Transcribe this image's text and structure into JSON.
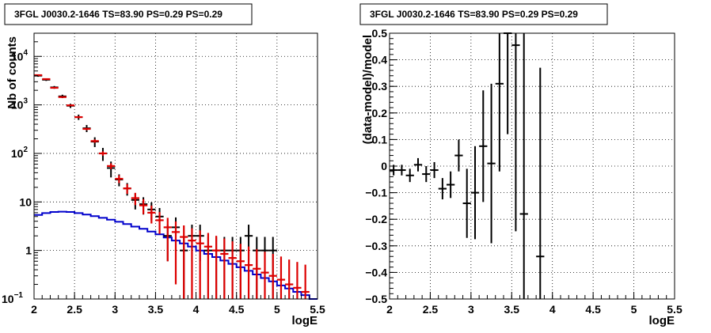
{
  "colors": {
    "data": "#000000",
    "sum_model": "#dd0000",
    "source_model": "#0000cc"
  },
  "chart_data": [
    {
      "type": "line",
      "title": "3FGL J0030.2-1646 TS=83.90 PS=0.29 PS=0.29",
      "xlabel": "logE",
      "ylabel": "Nb of counts",
      "xlim": [
        2,
        5.5
      ],
      "ylim": [
        0.1,
        30000
      ],
      "ylog": true,
      "grid": true,
      "xticks": [
        "2",
        "2.5",
        "3",
        "3.5",
        "4",
        "4.5",
        "5",
        "5.5"
      ],
      "yticks": [
        {
          "value": 0.1,
          "base": "10",
          "exp": "−1"
        },
        {
          "value": 1,
          "base": "1",
          "exp": ""
        },
        {
          "value": 10,
          "base": "10",
          "exp": ""
        },
        {
          "value": 100,
          "base": "10",
          "exp": "2"
        },
        {
          "value": 1000,
          "base": "10",
          "exp": "3"
        },
        {
          "value": 10000,
          "base": "10",
          "exp": "4"
        }
      ],
      "bin_width": 0.1,
      "series": [
        {
          "role": "data",
          "x": [
            2.05,
            2.15,
            2.25,
            2.35,
            2.45,
            2.55,
            2.65,
            2.75,
            2.85,
            2.95,
            3.05,
            3.15,
            3.25,
            3.35,
            3.45,
            3.55,
            3.65,
            3.75,
            3.85,
            3.95,
            4.05,
            4.15,
            4.25,
            4.35,
            4.45,
            4.55,
            4.65,
            4.75,
            4.85,
            4.95
          ],
          "y": [
            4000,
            3300,
            2300,
            1500,
            960,
            560,
            330,
            175,
            100,
            50,
            29,
            19,
            11,
            9,
            7,
            5,
            2,
            3,
            1,
            2,
            2,
            1,
            1,
            1,
            1,
            1,
            2,
            1,
            1,
            1
          ],
          "yerr_low": [
            200,
            180,
            150,
            120,
            95,
            70,
            55,
            40,
            30,
            18,
            8,
            5.5,
            4,
            3.5,
            2.8,
            2.5,
            1.4,
            1.8,
            0.9,
            1.4,
            1.4,
            0.9,
            0.9,
            0.9,
            0.9,
            0.9,
            1.4,
            0.9,
            0.9,
            0.9
          ],
          "yerr_high": [
            200,
            180,
            150,
            120,
            95,
            70,
            55,
            40,
            30,
            18,
            8,
            5.5,
            4,
            3.5,
            2.8,
            2.5,
            1.4,
            1.8,
            0.9,
            1.4,
            1.4,
            0.9,
            0.9,
            0.9,
            0.9,
            0.9,
            1.4,
            0.9,
            0.9,
            0.9
          ]
        },
        {
          "role": "sum_model",
          "x": [
            2.05,
            2.15,
            2.25,
            2.35,
            2.45,
            2.55,
            2.65,
            2.75,
            2.85,
            2.95,
            3.05,
            3.15,
            3.25,
            3.35,
            3.45,
            3.55,
            3.65,
            3.75,
            3.85,
            3.95,
            4.05,
            4.15,
            4.25,
            4.35,
            4.45,
            4.55,
            4.65,
            4.75,
            4.85,
            4.95,
            5.05,
            5.15,
            5.25,
            5.35
          ],
          "y": [
            4100,
            3400,
            2250,
            1450,
            980,
            560,
            320,
            180,
            100,
            55,
            30,
            19,
            12,
            8.5,
            6,
            4.2,
            3,
            2.4,
            1.9,
            1.6,
            1.4,
            1.2,
            1.0,
            0.85,
            0.7,
            0.6,
            0.5,
            0.42,
            0.35,
            0.3,
            0.25,
            0.2,
            0.17,
            0.14
          ],
          "yerr_low": [
            60,
            55,
            45,
            40,
            32,
            25,
            18,
            14,
            10,
            7.5,
            5.5,
            4.3,
            3.4,
            2.9,
            2.4,
            2.0,
            2.4,
            2.2,
            1.8,
            1.5,
            1.35,
            1.15,
            0.95,
            0.8,
            0.66,
            0.56,
            0.46,
            0.39,
            0.32,
            0.28,
            0.23,
            0.18,
            0.16,
            0.13
          ],
          "yerr_high": [
            60,
            55,
            45,
            40,
            32,
            25,
            18,
            14,
            10,
            7.5,
            5.5,
            4.3,
            3.4,
            2.9,
            2.4,
            2.0,
            1.7,
            1.55,
            1.38,
            1.26,
            1.2,
            1.1,
            1.0,
            0.92,
            0.84,
            0.77,
            0.71,
            0.65,
            0.59,
            0.55,
            0.5,
            0.45,
            0.41,
            0.37
          ]
        },
        {
          "role": "source_model",
          "x": [
            2.0,
            2.1,
            2.2,
            2.3,
            2.4,
            2.5,
            2.6,
            2.7,
            2.8,
            2.9,
            3.0,
            3.1,
            3.2,
            3.3,
            3.4,
            3.5,
            3.6,
            3.7,
            3.8,
            3.9,
            4.0,
            4.1,
            4.2,
            4.3,
            4.4,
            4.5,
            4.6,
            4.7,
            4.8,
            4.9,
            5.0,
            5.1,
            5.2,
            5.3,
            5.4
          ],
          "y": [
            5.4,
            5.9,
            6.2,
            6.3,
            6.2,
            5.9,
            5.5,
            5.1,
            4.7,
            4.3,
            3.9,
            3.5,
            3.1,
            2.8,
            2.45,
            2.15,
            1.85,
            1.6,
            1.4,
            1.2,
            1.0,
            0.85,
            0.73,
            0.62,
            0.53,
            0.45,
            0.38,
            0.32,
            0.27,
            0.23,
            0.19,
            0.165,
            0.14,
            0.12,
            0.1
          ]
        }
      ]
    },
    {
      "type": "scatter",
      "title": "3FGL J0030.2-1646 TS=83.90 PS=0.29 PS=0.29",
      "xlabel": "logE",
      "ylabel": "(data-model)/model",
      "xlim": [
        2,
        5.5
      ],
      "ylim": [
        -0.5,
        0.5
      ],
      "grid": true,
      "xticks": [
        "2",
        "2.5",
        "3",
        "3.5",
        "4",
        "4.5",
        "5",
        "5.5"
      ],
      "yticks": [
        "−0.5",
        "−0.4",
        "−0.3",
        "−0.2",
        "−0.1",
        "0",
        "0.1",
        "0.2",
        "0.3",
        "0.4",
        "0.5"
      ],
      "bin_width": 0.1,
      "series": [
        {
          "role": "residual",
          "x": [
            2.05,
            2.15,
            2.25,
            2.35,
            2.45,
            2.55,
            2.65,
            2.75,
            2.85,
            2.95,
            3.05,
            3.15,
            3.25,
            3.35,
            3.45,
            3.55,
            3.65,
            3.85
          ],
          "y": [
            -0.015,
            -0.015,
            -0.035,
            0.005,
            -0.03,
            -0.015,
            -0.085,
            -0.07,
            0.04,
            -0.14,
            -0.1,
            0.075,
            0.01,
            0.31,
            0.5,
            0.455,
            -0.18,
            -0.34
          ],
          "yerr": [
            0.02,
            0.02,
            0.025,
            0.025,
            0.03,
            0.03,
            0.04,
            0.05,
            0.06,
            0.13,
            0.175,
            0.21,
            0.3,
            0.33,
            0.38,
            0.7,
            0.8,
            0.71
          ]
        }
      ]
    }
  ]
}
